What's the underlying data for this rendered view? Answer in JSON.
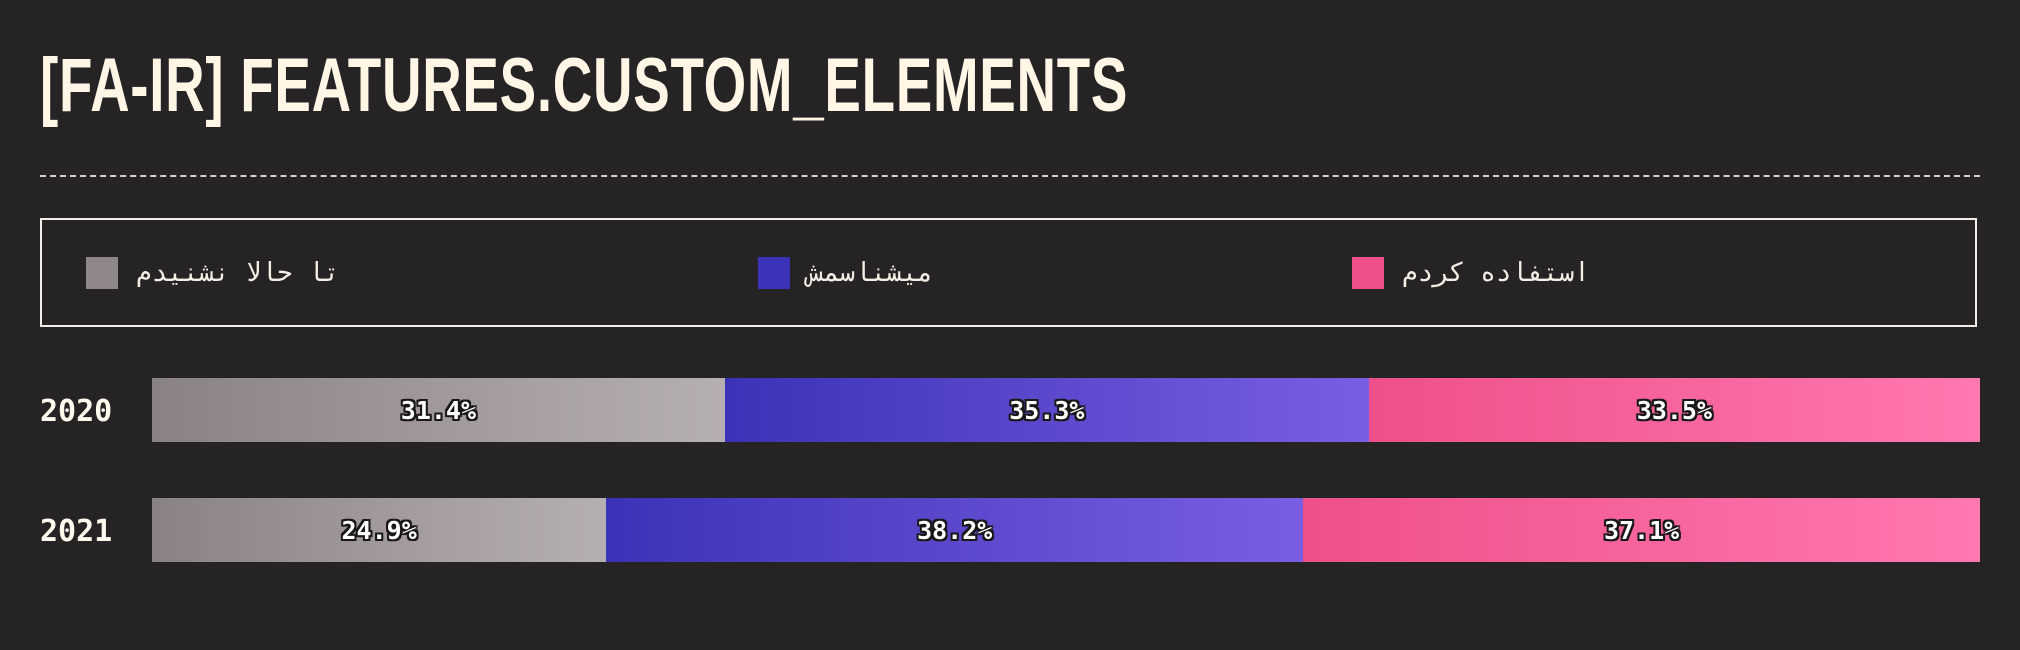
{
  "title": "[FA-IR] FEATURES.CUSTOM_ELEMENTS",
  "legend": [
    {
      "label": "تا حالا نشنیدم",
      "color": "#8f868c"
    },
    {
      "label": "میشناسمش",
      "color": "#3b33b7"
    },
    {
      "label": "استفاده کردم",
      "color": "#ef4f8a"
    }
  ],
  "chart_data": {
    "type": "bar",
    "orientation": "horizontal",
    "stacked": true,
    "normalized": true,
    "categories": [
      "2020",
      "2021"
    ],
    "series": [
      {
        "name": "تا حالا نشنیدم",
        "values": [
          31.4,
          24.9
        ],
        "labels": [
          "31.4%",
          "24.9%"
        ],
        "color_start": "#8a8186",
        "color_end": "#b6afb2"
      },
      {
        "name": "میشناسمش",
        "values": [
          35.3,
          38.2
        ],
        "labels": [
          "35.3%",
          "38.2%"
        ],
        "color_start": "#3b33b7",
        "color_end": "#7a5ee2"
      },
      {
        "name": "استفاده کردم",
        "values": [
          33.5,
          37.1
        ],
        "labels": [
          "33.5%",
          "37.1%"
        ],
        "color_start": "#ef4f8a",
        "color_end": "#ff78b1"
      }
    ],
    "xlim": [
      0,
      100
    ],
    "legend_position": "top",
    "grid": false
  }
}
